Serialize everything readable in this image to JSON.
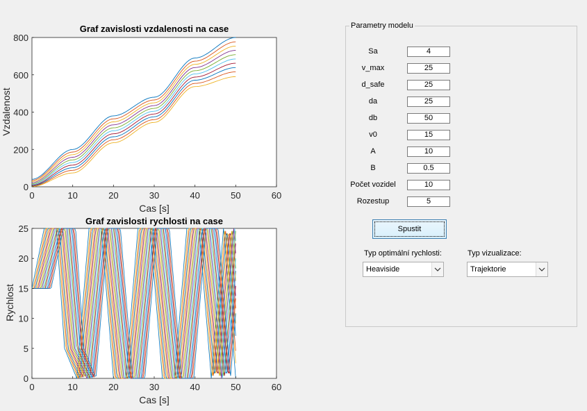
{
  "plot1": {
    "title": "Graf zavislosti vzdalenosti na case",
    "xlabel": "Cas [s]",
    "ylabel": "Vzdalenost",
    "xticks": [
      "0",
      "10",
      "20",
      "30",
      "40",
      "50",
      "60"
    ],
    "yticks": [
      "0",
      "200",
      "400",
      "600",
      "800"
    ]
  },
  "plot2": {
    "title": "Graf zavislosti rychlosti na case",
    "xlabel": "Cas [s]",
    "ylabel": "Rychlost",
    "xticks": [
      "0",
      "10",
      "20",
      "30",
      "40",
      "50",
      "60"
    ],
    "yticks": [
      "0",
      "5",
      "10",
      "15",
      "20",
      "25"
    ]
  },
  "panel": {
    "title": "Parametry modelu",
    "params": [
      {
        "label": "Sa",
        "value": "4"
      },
      {
        "label": "v_max",
        "value": "25"
      },
      {
        "label": "d_safe",
        "value": "25"
      },
      {
        "label": "da",
        "value": "25"
      },
      {
        "label": "db",
        "value": "50"
      },
      {
        "label": "v0",
        "value": "15"
      },
      {
        "label": "A",
        "value": "10"
      },
      {
        "label": "B",
        "value": "0.5"
      },
      {
        "label": "Počet vozidel",
        "value": "10"
      },
      {
        "label": "Rozestup",
        "value": "5"
      }
    ],
    "run_button": "Spustit",
    "speed_label": "Typ optimální rychlosti:",
    "speed_value": "Heaviside",
    "vis_label": "Typ vizualizace:",
    "vis_value": "Trajektorie"
  },
  "colors": {
    "series": [
      "#0072bd",
      "#d95319",
      "#edb120",
      "#7e2f8e",
      "#77ac30",
      "#4dbeee",
      "#a2142f",
      "#0072bd",
      "#d95319",
      "#edb120"
    ]
  },
  "chart_data": [
    {
      "type": "line",
      "title": "Graf zavislosti vzdalenosti na case",
      "xlabel": "Cas [s]",
      "ylabel": "Vzdalenost",
      "xlim": [
        0,
        60
      ],
      "ylim": [
        0,
        800
      ],
      "series": [
        {
          "x": [
            0,
            10,
            20,
            30,
            40,
            50
          ],
          "values": [
            40,
            200,
            380,
            480,
            690,
            800
          ]
        },
        {
          "x": [
            0,
            10,
            20,
            30,
            40,
            50
          ],
          "values": [
            34,
            186,
            364,
            465,
            673,
            777
          ]
        },
        {
          "x": [
            0,
            10,
            20,
            30,
            40,
            50
          ],
          "values": [
            28,
            172,
            348,
            450,
            656,
            754
          ]
        },
        {
          "x": [
            0,
            10,
            20,
            30,
            40,
            50
          ],
          "values": [
            22,
            158,
            332,
            435,
            639,
            731
          ]
        },
        {
          "x": [
            0,
            10,
            20,
            30,
            40,
            50
          ],
          "values": [
            16,
            144,
            316,
            420,
            622,
            708
          ]
        },
        {
          "x": [
            0,
            10,
            20,
            30,
            40,
            50
          ],
          "values": [
            12,
            130,
            300,
            405,
            605,
            685
          ]
        },
        {
          "x": [
            0,
            10,
            20,
            30,
            40,
            50
          ],
          "values": [
            8,
            116,
            284,
            390,
            588,
            662
          ]
        },
        {
          "x": [
            0,
            10,
            20,
            30,
            40,
            50
          ],
          "values": [
            5,
            102,
            268,
            375,
            571,
            639
          ]
        },
        {
          "x": [
            0,
            10,
            20,
            30,
            40,
            50
          ],
          "values": [
            3,
            88,
            252,
            360,
            554,
            616
          ]
        },
        {
          "x": [
            0,
            10,
            20,
            30,
            40,
            50
          ],
          "values": [
            1,
            74,
            236,
            345,
            537,
            590
          ]
        }
      ]
    },
    {
      "type": "line",
      "title": "Graf zavislosti rychlosti na case",
      "xlabel": "Cas [s]",
      "ylabel": "Rychlost",
      "xlim": [
        0,
        60
      ],
      "ylim": [
        0,
        25
      ],
      "series": [
        {
          "x": [
            0,
            3,
            6,
            8,
            11,
            14,
            17,
            20,
            23,
            26,
            29,
            32,
            35,
            38,
            41,
            44,
            47,
            50
          ],
          "values": [
            15,
            25,
            25,
            5,
            0,
            25,
            25,
            0,
            0,
            25,
            25,
            0,
            0,
            25,
            25,
            0,
            25,
            0
          ]
        }
      ]
    }
  ]
}
